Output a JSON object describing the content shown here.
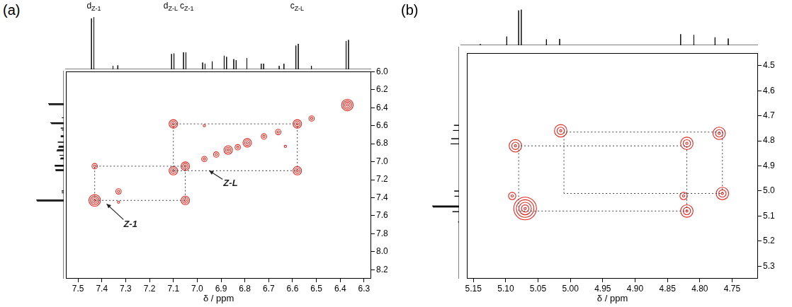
{
  "chart_data": [
    {
      "type": "contour",
      "panel_label": "(a)",
      "x_label": "δ / ppm",
      "xlim": [
        7.55,
        6.27
      ],
      "xticks": [
        7.5,
        7.4,
        7.3,
        7.2,
        7.1,
        {
          "value": 7,
          "label": "7.0"
        },
        6.9,
        6.8,
        6.7,
        6.6,
        6.5,
        6.4,
        6.3
      ],
      "ylim": [
        8.3,
        6.0
      ],
      "yticks": [
        {
          "value": 6,
          "label": "6.0"
        },
        6.2,
        6.4,
        6.6,
        6.8,
        {
          "value": 7,
          "label": "7.0"
        },
        7.2,
        7.4,
        7.6,
        7.8,
        {
          "value": 8,
          "label": "8.0"
        },
        8.2
      ],
      "grid": false,
      "peaks": {
        "x": [
          7.43,
          7.33,
          7.1,
          7.05,
          6.97,
          6.92,
          6.87,
          6.83,
          6.79,
          6.72,
          6.66,
          6.58,
          6.52,
          6.37,
          7.43,
          7.05,
          7.1,
          6.58,
          7.33,
          6.97,
          6.63
        ],
        "y": [
          7.43,
          7.33,
          7.1,
          7.05,
          6.97,
          6.92,
          6.87,
          6.84,
          6.79,
          6.72,
          6.67,
          6.58,
          6.52,
          6.37,
          7.05,
          7.43,
          6.58,
          7.1,
          7.45,
          6.6,
          6.83
        ],
        "contour_levels": [
          4,
          2,
          3,
          3,
          2,
          2,
          3,
          2,
          3,
          2,
          2,
          3,
          2,
          4,
          2,
          3,
          3,
          3,
          1,
          1,
          1
        ],
        "color": "#e3261f"
      },
      "correlations": {
        "pairs": [
          [
            7.43,
            7.05
          ],
          [
            7.1,
            6.58
          ]
        ],
        "color": "#444444",
        "line_style": "dotted"
      },
      "spectrum": {
        "ppm": [
          7.44,
          7.43,
          7.35,
          7.33,
          7.105,
          7.095,
          7.055,
          7.045,
          6.975,
          6.965,
          6.935,
          6.885,
          6.875,
          6.845,
          6.835,
          6.79,
          6.73,
          6.72,
          6.655,
          6.635,
          6.585,
          6.575,
          6.52,
          6.375,
          6.365
        ],
        "intensity": [
          0.9,
          0.92,
          0.06,
          0.07,
          0.27,
          0.28,
          0.3,
          0.3,
          0.12,
          0.1,
          0.14,
          0.24,
          0.22,
          0.18,
          0.16,
          0.2,
          0.1,
          0.1,
          0.06,
          0.1,
          0.42,
          0.45,
          0.06,
          0.5,
          0.52
        ],
        "intensity_lim": [
          0,
          1
        ],
        "color": "#000000"
      },
      "peak_labels": [
        {
          "text": "d",
          "subscript": "Z-1",
          "ppm": 7.43
        },
        {
          "text": "d",
          "subscript": "Z-L",
          "ppm": 7.1
        },
        {
          "text": "c",
          "subscript": "Z-1",
          "ppm": 7.05
        },
        {
          "text": "c",
          "subscript": "Z-L",
          "ppm": 6.58
        }
      ],
      "annotations": [
        {
          "text": "Z-1",
          "x": 7.28,
          "y": 7.7,
          "arrow_to": [
            7.38,
            7.47
          ]
        },
        {
          "text": "Z-L",
          "x": 6.86,
          "y": 7.24,
          "arrow_to": [
            6.95,
            7.1
          ]
        }
      ]
    },
    {
      "type": "contour",
      "panel_label": "(b)",
      "x_label": "δ / ppm",
      "xlim": [
        5.16,
        4.71
      ],
      "xticks": [
        5.15,
        {
          "value": 5.1,
          "label": "5.10"
        },
        5.05,
        {
          "value": 5,
          "label": "5.00"
        },
        4.95,
        {
          "value": 4.9,
          "label": "4.90"
        },
        4.85,
        {
          "value": 4.8,
          "label": "4.80"
        },
        4.75
      ],
      "ylim": [
        5.35,
        4.45
      ],
      "yticks": [
        4.5,
        4.6,
        4.7,
        4.8,
        4.9,
        {
          "value": 5,
          "label": "5.0"
        },
        5.1,
        5.2,
        5.3
      ],
      "grid": false,
      "peaks": {
        "x": [
          5.07,
          5.09,
          5.085,
          5.015,
          4.82,
          4.77,
          4.82,
          4.825,
          4.765
        ],
        "y": [
          5.07,
          5.02,
          4.82,
          4.76,
          4.81,
          4.77,
          5.08,
          5.02,
          5.01
        ],
        "contour_levels": [
          5,
          2,
          3,
          3,
          3,
          3,
          3,
          2,
          3
        ],
        "color": "#e3261f"
      },
      "correlations": {
        "pairs": [
          [
            5.08,
            4.82
          ],
          [
            5.01,
            4.765
          ]
        ],
        "color": "#444444",
        "line_style": "dotted"
      },
      "spectrum": {
        "ppm": [
          5.13,
          5.09,
          5.072,
          5.068,
          5.03,
          5.01,
          4.827,
          4.807,
          4.775,
          4.755
        ],
        "intensity": [
          0.03,
          0.22,
          0.88,
          0.9,
          0.15,
          0.16,
          0.28,
          0.26,
          0.2,
          0.17
        ],
        "intensity_lim": [
          0,
          1
        ],
        "color": "#000000"
      }
    }
  ]
}
